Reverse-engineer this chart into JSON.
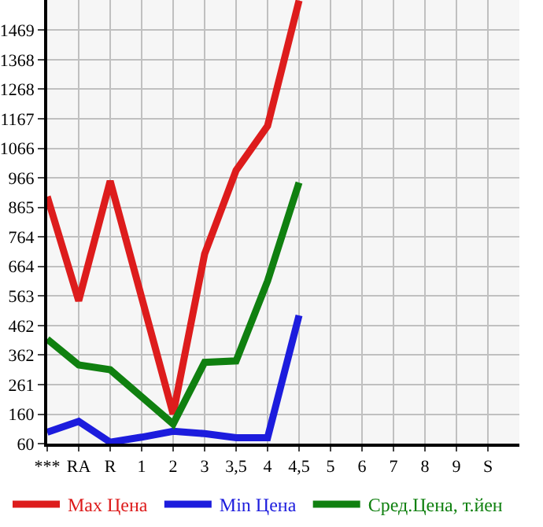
{
  "chart_data": {
    "type": "line",
    "categories": [
      "***",
      "RA",
      "R",
      "1",
      "2",
      "3",
      "3,5",
      "4",
      "4,5",
      "5",
      "6",
      "7",
      "8",
      "9",
      "S"
    ],
    "series": [
      {
        "name": "Max Цена",
        "color": "#dd1c1c",
        "values": [
          902,
          547,
          955,
          null,
          161,
          706,
          991,
          1143,
          1570,
          null,
          null,
          null,
          null,
          null,
          null
        ]
      },
      {
        "name": "Min Цена",
        "color": "#1c1cdd",
        "values": [
          99,
          136,
          65,
          82,
          102,
          94,
          80,
          80,
          497,
          null,
          null,
          null,
          null,
          null,
          null
        ]
      },
      {
        "name": "Сред.Цена, т.йен",
        "color": "#108010",
        "values": [
          416,
          328,
          312,
          null,
          127,
          337,
          342,
          614,
          950,
          null,
          null,
          null,
          null,
          null,
          null
        ]
      }
    ],
    "ylim": [
      60,
      1572
    ],
    "yticks": [
      60,
      160,
      261,
      362,
      462,
      563,
      664,
      764,
      865,
      966,
      1066,
      1167,
      1268,
      1368,
      1469
    ],
    "grid": true,
    "legend": "bottom",
    "marker": "none",
    "line_style": "solid"
  }
}
